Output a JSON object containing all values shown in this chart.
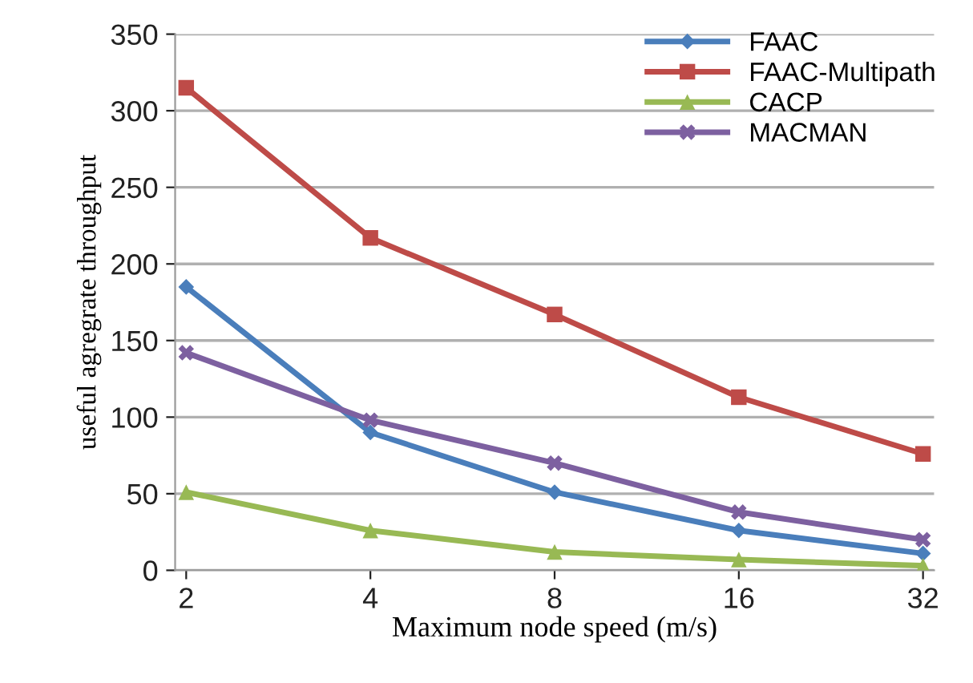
{
  "chart_data": {
    "type": "line",
    "xlabel": "Maximum node speed (m/s)",
    "ylabel": "useful agregrate throughput",
    "categories": [
      "2",
      "4",
      "8",
      "16",
      "32"
    ],
    "series": [
      {
        "name": "FAAC",
        "color": "#4a7ebb",
        "marker": "diamond",
        "values": [
          185,
          90,
          51,
          26,
          11
        ]
      },
      {
        "name": "FAAC-Multipath",
        "color": "#be4b48",
        "marker": "square",
        "values": [
          315,
          217,
          167,
          113,
          76
        ]
      },
      {
        "name": "CACP",
        "color": "#98b954",
        "marker": "triangle",
        "values": [
          51,
          26,
          12,
          7,
          3
        ]
      },
      {
        "name": "MACMAN",
        "color": "#7d60a0",
        "marker": "cross",
        "values": [
          142,
          98,
          70,
          38,
          20
        ]
      }
    ],
    "ylim": [
      0,
      350
    ],
    "yticks": [
      0,
      50,
      100,
      150,
      200,
      250,
      300,
      350
    ],
    "grid": "y",
    "legend": "top right",
    "line_style": "solid"
  }
}
